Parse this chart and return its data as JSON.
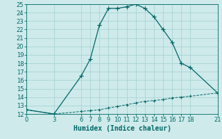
{
  "title": "",
  "xlabel": "Humidex (Indice chaleur)",
  "bg_color": "#ceeaea",
  "grid_color": "#aad4d4",
  "line_color": "#006666",
  "curve1_x": [
    0,
    3,
    6,
    7,
    8,
    9,
    10,
    11,
    12,
    13,
    14,
    15,
    16,
    17,
    18,
    21
  ],
  "curve1_y": [
    12.5,
    12.0,
    16.5,
    18.5,
    22.5,
    24.5,
    24.5,
    24.7,
    25.0,
    24.5,
    23.5,
    22.0,
    20.5,
    18.0,
    17.5,
    14.5
  ],
  "curve2_x": [
    0,
    3,
    6,
    7,
    8,
    9,
    10,
    11,
    12,
    13,
    14,
    15,
    16,
    17,
    18,
    21
  ],
  "curve2_y": [
    12.5,
    12.0,
    12.3,
    12.4,
    12.5,
    12.7,
    12.9,
    13.1,
    13.3,
    13.5,
    13.6,
    13.7,
    13.9,
    14.0,
    14.1,
    14.5
  ],
  "xlim": [
    0,
    21
  ],
  "ylim": [
    12,
    25
  ],
  "xticks": [
    0,
    3,
    6,
    7,
    8,
    9,
    10,
    11,
    12,
    13,
    14,
    15,
    16,
    17,
    18,
    21
  ],
  "yticks": [
    12,
    13,
    14,
    15,
    16,
    17,
    18,
    19,
    20,
    21,
    22,
    23,
    24,
    25
  ],
  "tick_fontsize": 6,
  "xlabel_fontsize": 7
}
